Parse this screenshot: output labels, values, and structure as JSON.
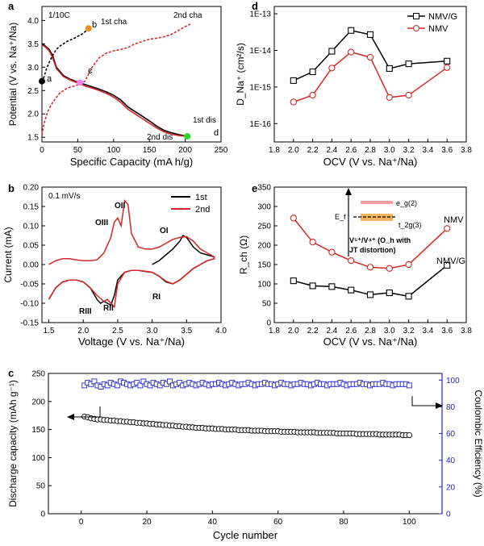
{
  "chart_data": [
    {
      "panel": "a",
      "type": "line",
      "annotation": "1/10C",
      "xlabel": "Specific Capacity (mA h/g)",
      "ylabel": "Potential (V vs. Na⁺/Na)",
      "xlim": [
        0,
        250
      ],
      "ylim": [
        1.4,
        4.3
      ],
      "xticks": [
        "0",
        "50",
        "100",
        "150",
        "200",
        "250"
      ],
      "yticks": [
        "1.5",
        "2.0",
        "2.5",
        "3.0",
        "3.5",
        "4.0"
      ],
      "series": [
        {
          "name": "1st dis",
          "color": "#000000",
          "style": "solid",
          "x": [
            0,
            5,
            10,
            15,
            20,
            30,
            40,
            50,
            60,
            70,
            80,
            90,
            100,
            110,
            120,
            130,
            140,
            150,
            160,
            170,
            180,
            190,
            200,
            203
          ],
          "y": [
            3.5,
            3.45,
            3.38,
            3.25,
            3.0,
            2.82,
            2.74,
            2.68,
            2.63,
            2.58,
            2.53,
            2.47,
            2.4,
            2.3,
            2.15,
            2.05,
            1.95,
            1.85,
            1.74,
            1.65,
            1.6,
            1.56,
            1.53,
            1.52
          ]
        },
        {
          "name": "2nd dis",
          "color": "#d62728",
          "style": "solid",
          "x": [
            0,
            5,
            10,
            15,
            20,
            30,
            40,
            50,
            60,
            70,
            80,
            90,
            100,
            110,
            120,
            130,
            140,
            150,
            160,
            170,
            180,
            190,
            200
          ],
          "y": [
            3.48,
            3.43,
            3.35,
            3.2,
            2.97,
            2.8,
            2.72,
            2.66,
            2.6,
            2.55,
            2.5,
            2.44,
            2.36,
            2.25,
            2.1,
            2.0,
            1.9,
            1.8,
            1.7,
            1.62,
            1.57,
            1.54,
            1.52
          ]
        },
        {
          "name": "1st cha",
          "color": "#000000",
          "style": "dashed",
          "x": [
            0,
            3,
            6,
            10,
            15,
            20,
            25,
            35,
            45,
            55,
            62,
            65
          ],
          "y": [
            2.68,
            2.8,
            2.95,
            3.1,
            3.25,
            3.38,
            3.45,
            3.55,
            3.62,
            3.7,
            3.78,
            3.83
          ]
        },
        {
          "name": "2nd cha",
          "color": "#d62728",
          "style": "dashed",
          "x": [
            0,
            3,
            8,
            15,
            25,
            35,
            50,
            60,
            70,
            80,
            90,
            100,
            110,
            120,
            130,
            140,
            150,
            160,
            170,
            180,
            190,
            200,
            207
          ],
          "y": [
            1.55,
            1.8,
            2.05,
            2.25,
            2.45,
            2.55,
            2.62,
            2.7,
            3.0,
            3.2,
            3.3,
            3.35,
            3.38,
            3.42,
            3.5,
            3.55,
            3.6,
            3.62,
            3.65,
            3.7,
            3.78,
            3.87,
            3.92
          ]
        }
      ],
      "points": [
        {
          "label": "a",
          "x": 0,
          "y": 2.7,
          "color": "#000000"
        },
        {
          "label": "b",
          "x": 65,
          "y": 3.83,
          "color": "#f08c1a"
        },
        {
          "label": "c",
          "x": 53,
          "y": 2.67,
          "color": "#ee82ee"
        },
        {
          "label": "d",
          "x": 203,
          "y": 1.52,
          "color": "#22dd22"
        }
      ],
      "labels": {
        "cha1": "1st cha",
        "cha2": "2nd cha",
        "dis1": "1st dis",
        "dis2": "2nd dis"
      }
    },
    {
      "panel": "b",
      "type": "line",
      "annotation": "0.1 mV/s",
      "xlabel": "Voltage (V vs. Na⁺/Na)",
      "ylabel": "Current (mA)",
      "xlim": [
        1.4,
        4.0
      ],
      "ylim": [
        -0.15,
        0.2
      ],
      "xticks": [
        "1.5",
        "2.0",
        "2.5",
        "3.0",
        "3.5",
        "4.0"
      ],
      "yticks": [
        "-0.15",
        "-0.10",
        "-0.05",
        "0.00",
        "0.05",
        "0.10",
        "0.15",
        "0.20"
      ],
      "legend_position": "top-right",
      "series": [
        {
          "name": "1st",
          "color": "#000000",
          "x": [
            1.5,
            1.6,
            1.7,
            1.8,
            1.9,
            2.0,
            2.1,
            2.2,
            2.25,
            2.3,
            2.35,
            2.4,
            2.45,
            2.5,
            2.6,
            2.7,
            2.8,
            2.9,
            3.0,
            3.1,
            3.2,
            3.3,
            3.4,
            3.5,
            3.6,
            3.7,
            3.8,
            3.9,
            3.9,
            3.8,
            3.7,
            3.6,
            3.5,
            3.45,
            3.4,
            3.3,
            3.2,
            3.1,
            3.0
          ],
          "y": [
            -0.09,
            -0.06,
            -0.045,
            -0.04,
            -0.04,
            -0.045,
            -0.06,
            -0.09,
            -0.1,
            -0.095,
            -0.1,
            -0.105,
            -0.08,
            -0.04,
            -0.02,
            -0.015,
            -0.015,
            -0.018,
            -0.02,
            -0.03,
            -0.045,
            -0.05,
            -0.04,
            -0.025,
            -0.01,
            0.0,
            0.01,
            0.015,
            0.02,
            0.025,
            0.03,
            0.045,
            0.07,
            0.075,
            0.06,
            0.04,
            0.025,
            0.01,
            0.0
          ]
        },
        {
          "name": "2nd",
          "color": "#d62728",
          "x": [
            1.5,
            1.6,
            1.7,
            1.8,
            1.9,
            2.0,
            2.1,
            2.2,
            2.3,
            2.35,
            2.4,
            2.45,
            2.5,
            2.6,
            2.7,
            2.8,
            2.9,
            3.0,
            3.1,
            3.2,
            3.3,
            3.4,
            3.5,
            3.6,
            3.7,
            3.8,
            3.9,
            3.9,
            3.8,
            3.7,
            3.6,
            3.5,
            3.4,
            3.3,
            3.2,
            3.1,
            3.0,
            2.9,
            2.8,
            2.7,
            2.65,
            2.6,
            2.55,
            2.5,
            2.45,
            2.4,
            2.3,
            2.2,
            2.1,
            2.0,
            1.9,
            1.8,
            1.7,
            1.6,
            1.5
          ],
          "y": [
            -0.09,
            -0.06,
            -0.045,
            -0.04,
            -0.04,
            -0.045,
            -0.06,
            -0.08,
            -0.095,
            -0.09,
            -0.1,
            -0.11,
            -0.05,
            -0.02,
            -0.015,
            -0.015,
            -0.017,
            -0.02,
            -0.03,
            -0.043,
            -0.05,
            -0.04,
            -0.025,
            -0.01,
            0.0,
            0.01,
            0.015,
            0.02,
            0.03,
            0.04,
            0.06,
            0.072,
            0.07,
            0.065,
            0.055,
            0.045,
            0.04,
            0.04,
            0.045,
            0.08,
            0.155,
            0.165,
            0.1,
            0.12,
            0.11,
            0.07,
            0.03,
            0.012,
            0.01,
            0.01,
            0.012,
            0.015,
            0.015,
            0.01,
            0.0
          ]
        }
      ],
      "peaks": [
        {
          "label": "OII",
          "x": 2.67,
          "y": 0.17
        },
        {
          "label": "OIII",
          "x": 2.45,
          "y": 0.125
        },
        {
          "label": "OI",
          "x": 3.48,
          "y": 0.078
        },
        {
          "label": "RI",
          "x": 3.35,
          "y": -0.062
        },
        {
          "label": "RII",
          "x": 2.45,
          "y": -0.118
        },
        {
          "label": "RIII",
          "x": 2.28,
          "y": -0.112
        }
      ]
    },
    {
      "panel": "c",
      "type": "scatter",
      "xlabel": "Cycle number",
      "ylabel": "Discharge capacity (mAh g⁻¹)",
      "ylabel_right": "Coulombic Efficiency (%)",
      "xlim": [
        -10,
        110
      ],
      "ylim": [
        0,
        250
      ],
      "ylim_right": [
        0,
        105
      ],
      "xticks": [
        "0",
        "20",
        "40",
        "60",
        "80",
        "100"
      ],
      "yticks": [
        "0",
        "50",
        "100",
        "150",
        "200",
        "250"
      ],
      "yticks_right": [
        "0",
        "20",
        "40",
        "60",
        "80",
        "100"
      ],
      "series": [
        {
          "name": "Discharge capacity",
          "axis": "left",
          "color": "#000000",
          "marker": "circle",
          "start": 1,
          "step": 1,
          "values": [
            173,
            172,
            170,
            169,
            168,
            168,
            167,
            167,
            166,
            166,
            165,
            165,
            164,
            164,
            163,
            163,
            162,
            162,
            161,
            161,
            160,
            160,
            159,
            159,
            158,
            158,
            157,
            157,
            156,
            156,
            155,
            155,
            154,
            154,
            153,
            153,
            153,
            152,
            152,
            152,
            151,
            151,
            151,
            150,
            150,
            150,
            150,
            149,
            149,
            149,
            149,
            148,
            148,
            148,
            148,
            147,
            147,
            147,
            147,
            147,
            146,
            146,
            146,
            146,
            146,
            145,
            145,
            145,
            145,
            145,
            145,
            144,
            144,
            144,
            144,
            144,
            144,
            143,
            143,
            143,
            143,
            143,
            143,
            142,
            142,
            142,
            142,
            142,
            142,
            142,
            141,
            141,
            141,
            141,
            141,
            141,
            141,
            140,
            140,
            140
          ]
        },
        {
          "name": "Coulombic Efficiency",
          "axis": "right",
          "color": "#2222cc",
          "marker": "square",
          "start": 1,
          "step": 1,
          "values": [
            96,
            98,
            97,
            99,
            96,
            95,
            97,
            96,
            98,
            97,
            96,
            99,
            98,
            97,
            96,
            97,
            98,
            96,
            99,
            97,
            96,
            98,
            97,
            96,
            98,
            97,
            99,
            96,
            97,
            98,
            96,
            97,
            98,
            97,
            96,
            97,
            98,
            97,
            96,
            97,
            97,
            98,
            97,
            96,
            97,
            98,
            97,
            96,
            97,
            97,
            98,
            97,
            96,
            97,
            97,
            98,
            97,
            97,
            96,
            97,
            98,
            97,
            97,
            96,
            97,
            97,
            98,
            97,
            97,
            96,
            97,
            98,
            97,
            97,
            96,
            97,
            97,
            97,
            98,
            97,
            96,
            97,
            97,
            97,
            98,
            97,
            97,
            96,
            97,
            97,
            97,
            98,
            97,
            97,
            96,
            97,
            97,
            97,
            97,
            96
          ]
        }
      ]
    },
    {
      "panel": "d",
      "type": "line",
      "xlabel": "OCV (V vs. Na⁺/Na)",
      "ylabel": "D_Na⁺ (cm²/s)",
      "log_y": true,
      "xlim": [
        1.8,
        3.8
      ],
      "ylim_exp": [
        -16.5,
        -12.8
      ],
      "xticks": [
        "1.8",
        "2.0",
        "2.2",
        "2.4",
        "2.6",
        "2.8",
        "3.0",
        "3.2",
        "3.4",
        "3.6",
        "3.8"
      ],
      "yticks": [
        "1E-16",
        "1E-15",
        "1E-14",
        "1E-13"
      ],
      "legend_position": "top-right",
      "series": [
        {
          "name": "NMV/G",
          "color": "#000000",
          "marker": "square",
          "x": [
            2.0,
            2.2,
            2.4,
            2.6,
            2.8,
            3.0,
            3.2,
            3.6
          ],
          "y": [
            1.5e-15,
            2.6e-15,
            9.5e-15,
            3.5e-14,
            2.7e-14,
            3.2e-15,
            4.3e-15,
            5.1e-15
          ]
        },
        {
          "name": "NMV",
          "color": "#d62728",
          "marker": "circle",
          "x": [
            2.0,
            2.2,
            2.4,
            2.6,
            2.8,
            3.0,
            3.2,
            3.6
          ],
          "y": [
            3.9e-16,
            6e-16,
            3.3e-15,
            9e-15,
            6.5e-15,
            5.2e-16,
            6e-16,
            3.4e-15
          ]
        }
      ]
    },
    {
      "panel": "e",
      "type": "line",
      "xlabel": "OCV (V vs. Na⁺/Na)",
      "ylabel": "R_ch (Ω)",
      "xlim": [
        1.8,
        3.8
      ],
      "ylim": [
        0,
        350
      ],
      "xticks": [
        "1.8",
        "2.0",
        "2.2",
        "2.4",
        "2.6",
        "2.8",
        "3.0",
        "3.2",
        "3.4",
        "3.6",
        "3.8"
      ],
      "yticks": [
        "0",
        "50",
        "100",
        "150",
        "200",
        "250",
        "300",
        "350"
      ],
      "series": [
        {
          "name": "NMV",
          "color": "#d62728",
          "marker": "circle",
          "x": [
            2.0,
            2.2,
            2.4,
            2.6,
            2.8,
            3.0,
            3.2,
            3.6
          ],
          "y": [
            270,
            208,
            182,
            160,
            143,
            140,
            150,
            243
          ]
        },
        {
          "name": "NMV/G",
          "color": "#000000",
          "marker": "square",
          "x": [
            2.0,
            2.2,
            2.4,
            2.6,
            2.8,
            3.0,
            3.2,
            3.6
          ],
          "y": [
            108,
            95,
            93,
            84,
            72,
            77,
            68,
            148
          ]
        }
      ],
      "inset": {
        "eg": "e_g(2)",
        "t2g": "t_2g(3)",
        "ef": "E_f",
        "note1": "V⁵⁺/V⁴⁺ (O_h with",
        "note2": "JT distortion)"
      }
    }
  ],
  "panel_letters": [
    "a",
    "b",
    "c",
    "d",
    "e"
  ]
}
